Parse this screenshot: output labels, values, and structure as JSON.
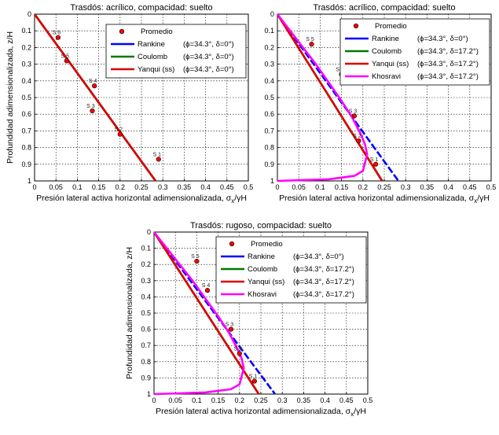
{
  "chart_data": [
    {
      "type": "line",
      "title": "Trasdós: acrílico, compacidad: suelto",
      "xlabel": "Presión lateral activa horizontal adimensionalizada, σ_x/γH",
      "ylabel": "Profundidad adimensionalizada, z/H",
      "xlim": [
        0,
        0.5
      ],
      "ylim": [
        0,
        1
      ],
      "y_inverted": true,
      "grid": true,
      "legend_position": "top-right",
      "xticks": [
        "0",
        "0.05",
        "0.1",
        "0.15",
        "0.2",
        "0.25",
        "0.3",
        "0.35",
        "0.4",
        "0.45",
        "0.5"
      ],
      "yticks": [
        "0",
        "0.1",
        "0.2",
        "0.3",
        "0.4",
        "0.5",
        "0.6",
        "0.7",
        "0.8",
        "0.9",
        "1"
      ],
      "points": {
        "name": "Promedio",
        "color": "#ff0000",
        "values": [
          {
            "label": "S 6",
            "x": 0.055,
            "y": 0.14
          },
          {
            "label": "S 5",
            "x": 0.075,
            "y": 0.28
          },
          {
            "label": "S 4",
            "x": 0.14,
            "y": 0.43
          },
          {
            "label": "S 3",
            "x": 0.135,
            "y": 0.58
          },
          {
            "label": "S 2",
            "x": 0.2,
            "y": 0.72
          },
          {
            "label": "S 1",
            "x": 0.29,
            "y": 0.87
          }
        ]
      },
      "series": [
        {
          "name": "Rankine",
          "params": "(ϕ=34.3°, δ=0°)",
          "color": "#0000ff",
          "x": [
            0,
            0.283
          ],
          "y": [
            0,
            1
          ]
        },
        {
          "name": "Coulomb",
          "params": "(ϕ=34.3°, δ=0°)",
          "color": "#007a00",
          "x": [
            0,
            0.283
          ],
          "y": [
            0,
            1
          ]
        },
        {
          "name": "Yanqui (ss)",
          "params": "(ϕ=34.3°, δ=0°)",
          "color": "#dd0000",
          "x": [
            0,
            0.283
          ],
          "y": [
            0,
            1
          ]
        }
      ]
    },
    {
      "type": "line",
      "title": "Trasdós: acrílico, compacidad: suelto",
      "xlabel": "Presión lateral activa horizontal adimensionalizada, σ_x/γH",
      "ylabel": "",
      "xlim": [
        0,
        0.5
      ],
      "ylim": [
        0,
        1
      ],
      "y_inverted": true,
      "grid": true,
      "legend_position": "top-right",
      "xticks": [
        "0",
        "0.05",
        "0.1",
        "0.15",
        "0.2",
        "0.25",
        "0.3",
        "0.35",
        "0.4",
        "0.45",
        "0.5"
      ],
      "yticks": [
        "0",
        "0.1",
        "0.2",
        "0.3",
        "0.4",
        "0.5",
        "0.6",
        "0.7",
        "0.8",
        "0.9",
        "1"
      ],
      "points": {
        "name": "Promedio",
        "color": "#ff0000",
        "values": [
          {
            "label": "S 5",
            "x": 0.08,
            "y": 0.18
          },
          {
            "label": "S 4",
            "x": 0.15,
            "y": 0.36
          },
          {
            "label": "S 3",
            "x": 0.18,
            "y": 0.61
          },
          {
            "label": "S 2",
            "x": 0.19,
            "y": 0.76
          },
          {
            "label": "S 1",
            "x": 0.23,
            "y": 0.9
          }
        ]
      },
      "series": [
        {
          "name": "Rankine",
          "params": "(ϕ=34.3°, δ=0°)",
          "color": "#0000ff",
          "x": [
            0,
            0.283
          ],
          "y": [
            0,
            1
          ]
        },
        {
          "name": "Coulomb",
          "params": "(ϕ=34.3°, δ=17.2°)",
          "color": "#007a00",
          "x": [
            0,
            0.245
          ],
          "y": [
            0,
            1
          ]
        },
        {
          "name": "Yanqui (ss)",
          "params": "(ϕ=34.3°, δ=17.2°)",
          "color": "#dd0000",
          "x": [
            0,
            0.245
          ],
          "y": [
            0,
            1
          ]
        },
        {
          "name": "Khosravi",
          "params": "(ϕ=34.3°, δ=17.2°)",
          "color": "#ff00ff",
          "x": [
            0,
            0.03,
            0.06,
            0.09,
            0.12,
            0.15,
            0.175,
            0.195,
            0.205,
            0.21,
            0.205,
            0.2,
            0.18,
            0.12,
            0.06,
            0.0
          ],
          "y": [
            0,
            0.1,
            0.2,
            0.3,
            0.41,
            0.52,
            0.62,
            0.72,
            0.78,
            0.84,
            0.89,
            0.94,
            0.97,
            0.99,
            0.995,
            1.0
          ]
        }
      ]
    },
    {
      "type": "line",
      "title": "Trasdós: rugoso, compacidad: suelto",
      "xlabel": "Presión lateral activa horizontal adimensionalizada, σ_x/γH",
      "ylabel": "Profundidad adimensionalizada, z/H",
      "xlim": [
        0,
        0.5
      ],
      "ylim": [
        0,
        1
      ],
      "y_inverted": true,
      "grid": true,
      "legend_position": "top-right",
      "xticks": [
        "0",
        "0.05",
        "0.1",
        "0.15",
        "0.2",
        "0.25",
        "0.3",
        "0.35",
        "0.4",
        "0.45",
        "0.5"
      ],
      "yticks": [
        "0",
        "0.1",
        "0.2",
        "0.3",
        "0.4",
        "0.5",
        "0.6",
        "0.7",
        "0.8",
        "0.9",
        "1"
      ],
      "points": {
        "name": "Promedio",
        "color": "#ff0000",
        "values": [
          {
            "label": "S 5",
            "x": 0.1,
            "y": 0.18
          },
          {
            "label": "S 4",
            "x": 0.125,
            "y": 0.36
          },
          {
            "label": "S 3",
            "x": 0.18,
            "y": 0.6
          },
          {
            "label": "S 2",
            "x": 0.2,
            "y": 0.75
          },
          {
            "label": "S 1",
            "x": 0.235,
            "y": 0.92
          }
        ]
      },
      "series": [
        {
          "name": "Rankine",
          "params": "(ϕ=34.3°, δ=0°)",
          "color": "#0000ff",
          "x": [
            0,
            0.283
          ],
          "y": [
            0,
            1
          ]
        },
        {
          "name": "Coulomb",
          "params": "(ϕ=34.3°, δ=17.2°)",
          "color": "#007a00",
          "x": [
            0,
            0.245
          ],
          "y": [
            0,
            1
          ]
        },
        {
          "name": "Yanqui (ss)",
          "params": "(ϕ=34.3°, δ=17.2°)",
          "color": "#dd0000",
          "x": [
            0,
            0.245
          ],
          "y": [
            0,
            1
          ]
        },
        {
          "name": "Khosravi",
          "params": "(ϕ=34.3°, δ=17.2°)",
          "color": "#ff00ff",
          "x": [
            0,
            0.03,
            0.06,
            0.09,
            0.12,
            0.15,
            0.175,
            0.195,
            0.205,
            0.21,
            0.205,
            0.2,
            0.18,
            0.12,
            0.06,
            0.0
          ],
          "y": [
            0,
            0.1,
            0.2,
            0.3,
            0.41,
            0.52,
            0.62,
            0.72,
            0.78,
            0.84,
            0.89,
            0.94,
            0.97,
            0.99,
            0.995,
            1.0
          ]
        }
      ]
    }
  ]
}
